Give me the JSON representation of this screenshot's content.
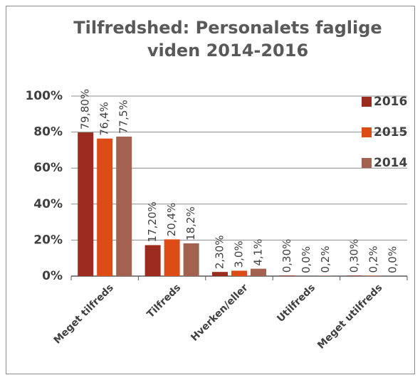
{
  "chart_data": {
    "type": "bar",
    "title": [
      "Tilfredshed: Personalets faglige",
      "viden 2014-2016"
    ],
    "categories": [
      "Meget tilfreds",
      "Tilfreds",
      "Hverken/eller",
      "Utilfreds",
      "Meget utilfreds"
    ],
    "series": [
      {
        "name": "2016",
        "color": "#9b2b1e",
        "values": [
          79.8,
          17.2,
          2.3,
          0.3,
          0.3
        ],
        "value_labels": [
          "79,80%",
          "17,20%",
          "2,30%",
          "0,30%",
          "0,30%"
        ]
      },
      {
        "name": "2015",
        "color": "#dd4b17",
        "values": [
          76.4,
          20.4,
          3.0,
          0.0,
          0.2
        ],
        "value_labels": [
          "76,4%",
          "20,4%",
          "3,0%",
          "0,0%",
          "0,2%"
        ]
      },
      {
        "name": "2014",
        "color": "#a3624f",
        "values": [
          77.5,
          18.2,
          4.1,
          0.2,
          0.0
        ],
        "value_labels": [
          "77,5%",
          "18,2%",
          "4,1%",
          "0,2%",
          "0,0%"
        ]
      }
    ],
    "ylim": [
      0,
      100
    ],
    "yticks": [
      {
        "value": 0,
        "label": "0%"
      },
      {
        "value": 20,
        "label": "20%"
      },
      {
        "value": 40,
        "label": "40%"
      },
      {
        "value": 60,
        "label": "60%"
      },
      {
        "value": 80,
        "label": "80%"
      },
      {
        "value": 100,
        "label": "100%"
      }
    ],
    "grid": true,
    "legend": "right"
  }
}
